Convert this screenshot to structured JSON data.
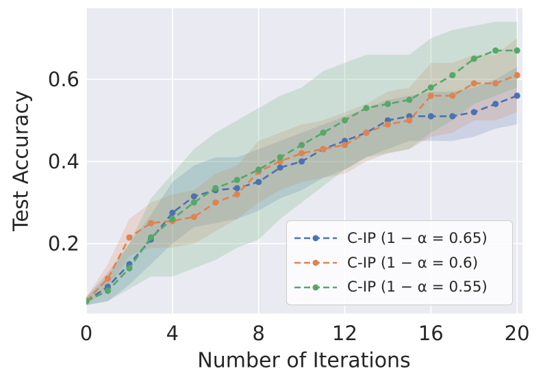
{
  "figure": {
    "xlabel": "Number of Iterations",
    "ylabel": "Test Accuracy",
    "background_color": "#ffffff",
    "plot_background_color": "#eaeaf2",
    "grid_color": "#ffffff",
    "text_color": "#262626",
    "legend_border_color": "#cccccc"
  },
  "chart_data": {
    "type": "line",
    "title": "",
    "xlabel": "Number of Iterations",
    "ylabel": "Test Accuracy",
    "x": [
      0,
      1,
      2,
      3,
      4,
      5,
      6,
      7,
      8,
      9,
      10,
      11,
      12,
      13,
      14,
      15,
      16,
      17,
      18,
      19,
      20
    ],
    "xtick_values": [
      0,
      4,
      8,
      12,
      16,
      20
    ],
    "xtick_labels": [
      "0",
      "4",
      "8",
      "12",
      "16",
      "20"
    ],
    "ytick_values": [
      0.2,
      0.4,
      0.6
    ],
    "ytick_labels": [
      "0.2",
      "0.4",
      "0.6"
    ],
    "xlim": [
      0,
      20.25
    ],
    "ylim": [
      0.03,
      0.773
    ],
    "grid": true,
    "legend_location": "lower right",
    "line_style": "dashed",
    "marker": "circle",
    "band_opacity": 0.2,
    "series": [
      {
        "name": "C-IP (1 − α = 0.65)",
        "color": "#4c72b0",
        "values": [
          0.06,
          0.095,
          0.15,
          0.21,
          0.275,
          0.315,
          0.33,
          0.335,
          0.35,
          0.385,
          0.4,
          0.43,
          0.45,
          0.47,
          0.5,
          0.51,
          0.51,
          0.51,
          0.52,
          0.54,
          0.56
        ],
        "band_lower": [
          0.05,
          0.06,
          0.1,
          0.15,
          0.2,
          0.24,
          0.25,
          0.26,
          0.28,
          0.31,
          0.33,
          0.36,
          0.38,
          0.41,
          0.43,
          0.45,
          0.45,
          0.45,
          0.46,
          0.48,
          0.49
        ],
        "band_upper": [
          0.07,
          0.13,
          0.2,
          0.27,
          0.35,
          0.39,
          0.41,
          0.41,
          0.43,
          0.45,
          0.47,
          0.49,
          0.51,
          0.53,
          0.55,
          0.56,
          0.57,
          0.57,
          0.58,
          0.6,
          0.63
        ]
      },
      {
        "name": "C-IP (1 − α = 0.6)",
        "color": "#dd8452",
        "values": [
          0.06,
          0.115,
          0.215,
          0.25,
          0.255,
          0.265,
          0.3,
          0.32,
          0.375,
          0.4,
          0.42,
          0.43,
          0.44,
          0.47,
          0.49,
          0.5,
          0.56,
          0.56,
          0.59,
          0.59,
          0.61
        ],
        "band_lower": [
          0.05,
          0.09,
          0.17,
          0.19,
          0.19,
          0.2,
          0.23,
          0.26,
          0.3,
          0.33,
          0.35,
          0.36,
          0.37,
          0.4,
          0.42,
          0.43,
          0.46,
          0.47,
          0.5,
          0.5,
          0.52
        ],
        "band_upper": [
          0.07,
          0.15,
          0.26,
          0.3,
          0.32,
          0.33,
          0.37,
          0.39,
          0.45,
          0.47,
          0.49,
          0.5,
          0.52,
          0.54,
          0.57,
          0.58,
          0.64,
          0.64,
          0.66,
          0.66,
          0.7
        ]
      },
      {
        "name": "C-IP (1 − α = 0.55)",
        "color": "#55a868",
        "values": [
          0.06,
          0.085,
          0.14,
          0.215,
          0.26,
          0.3,
          0.335,
          0.355,
          0.38,
          0.41,
          0.44,
          0.47,
          0.5,
          0.53,
          0.54,
          0.55,
          0.58,
          0.61,
          0.65,
          0.67,
          0.67
        ],
        "band_lower": [
          0.05,
          0.06,
          0.09,
          0.12,
          0.12,
          0.14,
          0.16,
          0.19,
          0.21,
          0.26,
          0.3,
          0.34,
          0.38,
          0.41,
          0.42,
          0.43,
          0.47,
          0.5,
          0.54,
          0.56,
          0.58
        ],
        "band_upper": [
          0.07,
          0.12,
          0.2,
          0.31,
          0.37,
          0.43,
          0.47,
          0.5,
          0.53,
          0.56,
          0.58,
          0.62,
          0.64,
          0.66,
          0.66,
          0.66,
          0.7,
          0.72,
          0.73,
          0.74,
          0.74
        ]
      }
    ]
  }
}
